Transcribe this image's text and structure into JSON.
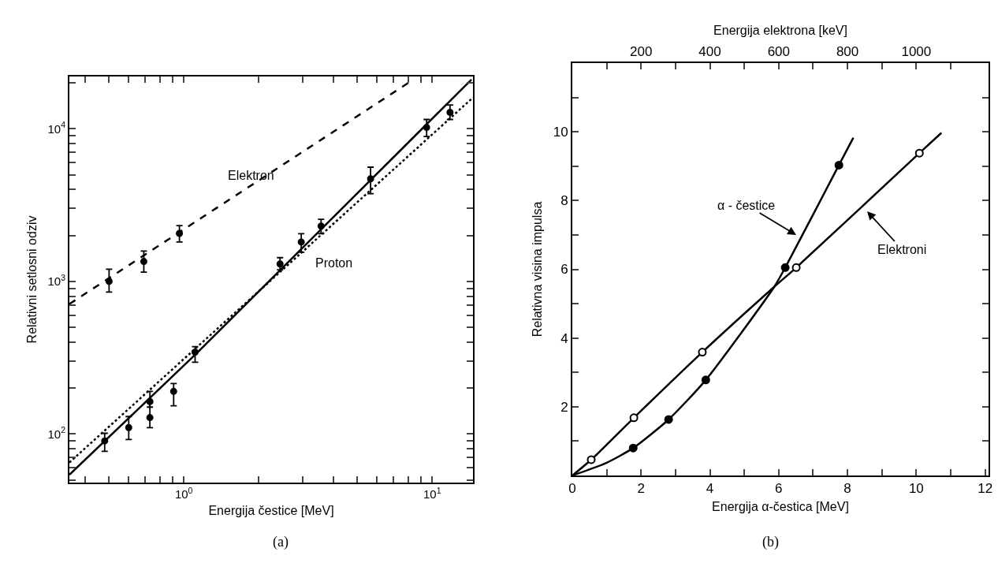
{
  "chart_data": [
    {
      "type": "scatter",
      "xlabel": "Energija čestice [MeV]",
      "ylabel": "Relativni setlosni odziv",
      "log": "xy",
      "marker": "circle",
      "xlim": [
        0.346,
        14.6
      ],
      "ylim": [
        48,
        22000
      ],
      "xticks": [
        {
          "value": 0.4,
          "label": null
        },
        {
          "value": 0.5,
          "label": null
        },
        {
          "value": 0.6,
          "label": null
        },
        {
          "value": 0.7,
          "label": null
        },
        {
          "value": 0.8,
          "label": null
        },
        {
          "value": 0.9,
          "label": null
        },
        {
          "value": 1,
          "label": "10$^{0}$"
        },
        {
          "value": 2,
          "label": null
        },
        {
          "value": 3,
          "label": null
        },
        {
          "value": 4,
          "label": null
        },
        {
          "value": 5,
          "label": null
        },
        {
          "value": 6,
          "label": null
        },
        {
          "value": 7,
          "label": null
        },
        {
          "value": 8,
          "label": null
        },
        {
          "value": 9,
          "label": null
        },
        {
          "value": 10,
          "label": "10$^{1}$"
        }
      ],
      "yticks": [
        {
          "value": 50,
          "label": null
        },
        {
          "value": 60,
          "label": null
        },
        {
          "value": 70,
          "label": null
        },
        {
          "value": 80,
          "label": null
        },
        {
          "value": 90,
          "label": null
        },
        {
          "value": 100,
          "label": "10$^{2}$"
        },
        {
          "value": 200,
          "label": null
        },
        {
          "value": 300,
          "label": null
        },
        {
          "value": 400,
          "label": null
        },
        {
          "value": 500,
          "label": null
        },
        {
          "value": 600,
          "label": null
        },
        {
          "value": 700,
          "label": null
        },
        {
          "value": 800,
          "label": null
        },
        {
          "value": 900,
          "label": null
        },
        {
          "value": 1000,
          "label": "10$^{3}$"
        },
        {
          "value": 2000,
          "label": null
        },
        {
          "value": 3000,
          "label": null
        },
        {
          "value": 4000,
          "label": null
        },
        {
          "value": 5000,
          "label": null
        },
        {
          "value": 6000,
          "label": null
        },
        {
          "value": 7000,
          "label": null
        },
        {
          "value": 8000,
          "label": null
        },
        {
          "value": 9000,
          "label": null
        },
        {
          "value": 10000,
          "label": "10$^{4}$"
        },
        {
          "value": 20000,
          "label": null
        }
      ],
      "series": [
        {
          "type": "line",
          "line_style": "dashed",
          "marker": "none",
          "color": "#000000",
          "x": [
            0.346,
            8.4
          ],
          "values": [
            710,
            21000
          ]
        },
        {
          "color": "#000000",
          "x": [
            0.5,
            0.69,
            0.96
          ],
          "values": [
            1000,
            1350,
            2060
          ],
          "errors": [
            [
              850,
              1200
            ],
            [
              1150,
              1580
            ],
            [
              1810,
              2320
            ]
          ]
        },
        {
          "type": "line",
          "line_style": "solid",
          "marker": "none",
          "color": "#000000",
          "x": [
            0.346,
            1.11,
            14.4
          ],
          "values": [
            54,
            330,
            21000
          ]
        },
        {
          "type": "line",
          "line_style": "dotted",
          "marker": "none",
          "color": "#000000",
          "x": [
            0.346,
            14.6
          ],
          "values": [
            65,
            16000
          ]
        },
        {
          "color": "#000000",
          "x": [
            0.48,
            0.6,
            0.73,
            0.73,
            0.91,
            1.11,
            2.44,
            2.97,
            3.57,
            5.65,
            9.5,
            11.8
          ],
          "values": [
            90,
            110,
            163,
            128,
            190,
            344,
            1300,
            1810,
            2300,
            4700,
            10200,
            12800
          ],
          "errors": [
            [
              77,
              101
            ],
            [
              92,
              130
            ],
            [
              150,
              190
            ],
            [
              110,
              160
            ],
            [
              153,
              214
            ],
            [
              295,
              373
            ],
            [
              1190,
              1430
            ],
            [
              1550,
              2050
            ],
            [
              2050,
              2550
            ],
            [
              3750,
              5600
            ],
            [
              8900,
              11500
            ],
            [
              11500,
              14300
            ]
          ]
        }
      ],
      "annotations": [
        "Elektron",
        "Proton",
        "(a)"
      ]
    },
    {
      "type": "line",
      "xlabel": "Energija α-čestica [MeV]",
      "ylabel": "Relativna visina impulsa",
      "x2label": "Energija elektrona [keV]",
      "xlim": [
        0,
        12.1
      ],
      "ylim": [
        0,
        12
      ],
      "x2lim": [
        0,
        1210
      ],
      "xticks": [
        0,
        {
          "value": 1,
          "label": null
        },
        2,
        {
          "value": 3,
          "label": null
        },
        4,
        {
          "value": 5,
          "label": null
        },
        6,
        {
          "value": 7,
          "label": null
        },
        8,
        {
          "value": 9,
          "label": null
        },
        10,
        {
          "value": 11,
          "label": null
        },
        12
      ],
      "yticks": [
        {
          "value": 1,
          "label": null
        },
        2,
        {
          "value": 3,
          "label": null
        },
        4,
        {
          "value": 5,
          "label": null
        },
        6,
        {
          "value": 7,
          "label": null
        },
        8,
        {
          "value": 9,
          "label": null
        },
        10,
        {
          "value": 11,
          "label": null
        }
      ],
      "x2ticks": [
        {
          "value": 100,
          "label": null
        },
        200,
        {
          "value": 300,
          "label": null
        },
        400,
        {
          "value": 500,
          "label": null
        },
        600,
        {
          "value": 700,
          "label": null
        },
        800,
        {
          "value": 900,
          "label": null
        },
        1000,
        {
          "value": 1100,
          "label": null
        }
      ],
      "series": [
        {
          "marker": "none",
          "line_style": "solid",
          "color": "#000000",
          "x": [
            0,
            1,
            1.77,
            2.8,
            3.88,
            5.87,
            6.19,
            7.75,
            8.17
          ],
          "values": [
            0,
            0.37,
            0.8,
            1.63,
            2.78,
            5.49,
            6.05,
            9.03,
            9.83
          ]
        },
        {
          "type": "scatter",
          "marker": "circle",
          "color": "#000000",
          "x": [
            1.77,
            2.8,
            3.88,
            6.19,
            7.75
          ],
          "values": [
            0.8,
            1.63,
            2.78,
            6.05,
            9.03
          ]
        },
        {
          "marker": "none",
          "line_style": "solid",
          "color": "#000000",
          "x": [
            0,
            0.55,
            1.79,
            3.78,
            5.87,
            6.51,
            10.09,
            10.73
          ],
          "values": [
            0,
            0.46,
            1.68,
            3.59,
            5.49,
            6.05,
            9.38,
            9.97
          ]
        },
        {
          "type": "scatter",
          "marker": "circle",
          "color": "#ffffff",
          "x": [
            0.55,
            1.79,
            3.78,
            6.51,
            10.09
          ],
          "values": [
            0.46,
            1.68,
            3.59,
            6.05,
            9.38
          ]
        }
      ],
      "annotations": [
        "α - čestice",
        "Elektroni",
        "(b)"
      ]
    }
  ]
}
